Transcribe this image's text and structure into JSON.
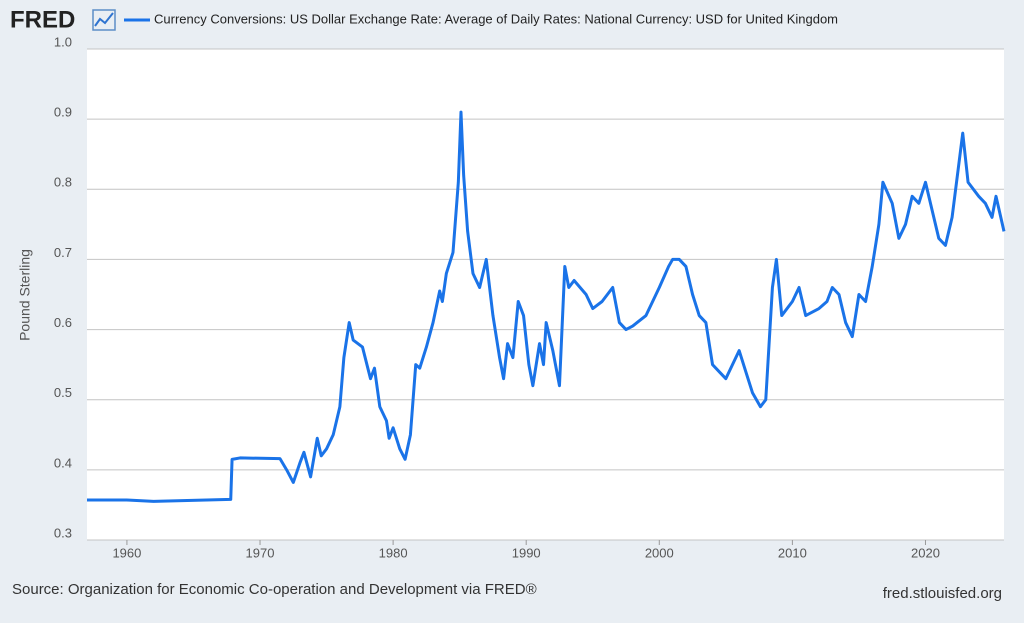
{
  "logo": "FRED",
  "chart_data": {
    "type": "line",
    "title": "Currency Conversions: US Dollar Exchange Rate: Average of Daily Rates: National Currency: USD for United Kingdom",
    "y_label": "Pound Sterling",
    "source": "Source: Organization for Economic Co-operation and Development via FRED®",
    "credit": "fred.stlouisfed.org",
    "xlim": [
      1957,
      2025.9
    ],
    "xticks": [
      1960,
      1970,
      1980,
      1990,
      2000,
      2010,
      2020
    ],
    "ylim": [
      0.3,
      1.0
    ],
    "yticks": [
      0.3,
      0.4,
      0.5,
      0.6,
      0.7,
      0.8,
      0.9,
      {
        "value": 1.0,
        "label": "1.0"
      }
    ],
    "grid": true,
    "series": [
      {
        "name": "Currency Conversions: US Dollar Exchange Rate: Average of Daily Rates: National Currency: USD for United Kingdom",
        "color": "#1a73e8",
        "x": [
          1957,
          1960,
          1962,
          1967.8,
          1967.9,
          1968.5,
          1971.5,
          1972,
          1972.5,
          1973,
          1973.3,
          1973.8,
          1974.3,
          1974.6,
          1975,
          1975.5,
          1976,
          1976.3,
          1976.7,
          1977,
          1977.7,
          1978.3,
          1978.6,
          1979,
          1979.5,
          1979.7,
          1980,
          1980.5,
          1980.9,
          1981.3,
          1981.7,
          1982,
          1982.5,
          1983,
          1983.5,
          1983.7,
          1984,
          1984.5,
          1984.9,
          1985.1,
          1985.3,
          1985.6,
          1986,
          1986.5,
          1987,
          1987.5,
          1988,
          1988.3,
          1988.6,
          1989,
          1989.4,
          1989.8,
          1990.2,
          1990.5,
          1991,
          1991.3,
          1991.5,
          1992,
          1992.5,
          1992.9,
          1993.2,
          1993.6,
          1994.5,
          1995,
          1995.7,
          1996.5,
          1997,
          1997.5,
          1998,
          1999,
          2000,
          2000.7,
          2001,
          2001.5,
          2002,
          2002.5,
          2003,
          2003.5,
          2004,
          2004.5,
          2005,
          2005.5,
          2006,
          2006.5,
          2007,
          2007.6,
          2008,
          2008.5,
          2008.8,
          2009.2,
          2010,
          2010.5,
          2011,
          2012,
          2012.6,
          2013,
          2013.5,
          2014,
          2014.5,
          2015,
          2015.5,
          2016,
          2016.5,
          2016.8,
          2017.5,
          2018,
          2018.5,
          2019,
          2019.5,
          2020,
          2020.5,
          2021,
          2021.5,
          2022,
          2022.6,
          2022.8,
          2023.2,
          2024,
          2024.5,
          2025,
          2025.3,
          2025.9
        ],
        "values": [
          0.357,
          0.357,
          0.355,
          0.358,
          0.415,
          0.417,
          0.416,
          0.4,
          0.382,
          0.41,
          0.425,
          0.39,
          0.445,
          0.42,
          0.43,
          0.45,
          0.49,
          0.56,
          0.61,
          0.585,
          0.575,
          0.53,
          0.545,
          0.49,
          0.47,
          0.445,
          0.46,
          0.43,
          0.415,
          0.45,
          0.55,
          0.545,
          0.575,
          0.61,
          0.655,
          0.64,
          0.68,
          0.71,
          0.81,
          0.91,
          0.82,
          0.74,
          0.68,
          0.66,
          0.7,
          0.62,
          0.56,
          0.53,
          0.58,
          0.56,
          0.64,
          0.62,
          0.55,
          0.52,
          0.58,
          0.55,
          0.61,
          0.57,
          0.52,
          0.69,
          0.66,
          0.67,
          0.65,
          0.63,
          0.64,
          0.66,
          0.61,
          0.6,
          0.605,
          0.62,
          0.66,
          0.69,
          0.7,
          0.7,
          0.69,
          0.65,
          0.62,
          0.61,
          0.55,
          0.54,
          0.53,
          0.55,
          0.57,
          0.54,
          0.51,
          0.49,
          0.5,
          0.66,
          0.7,
          0.62,
          0.64,
          0.66,
          0.62,
          0.63,
          0.64,
          0.66,
          0.65,
          0.61,
          0.59,
          0.65,
          0.64,
          0.69,
          0.75,
          0.81,
          0.78,
          0.73,
          0.75,
          0.79,
          0.78,
          0.81,
          0.77,
          0.73,
          0.72,
          0.76,
          0.85,
          0.88,
          0.81,
          0.79,
          0.78,
          0.76,
          0.79,
          0.74
        ]
      }
    ]
  }
}
